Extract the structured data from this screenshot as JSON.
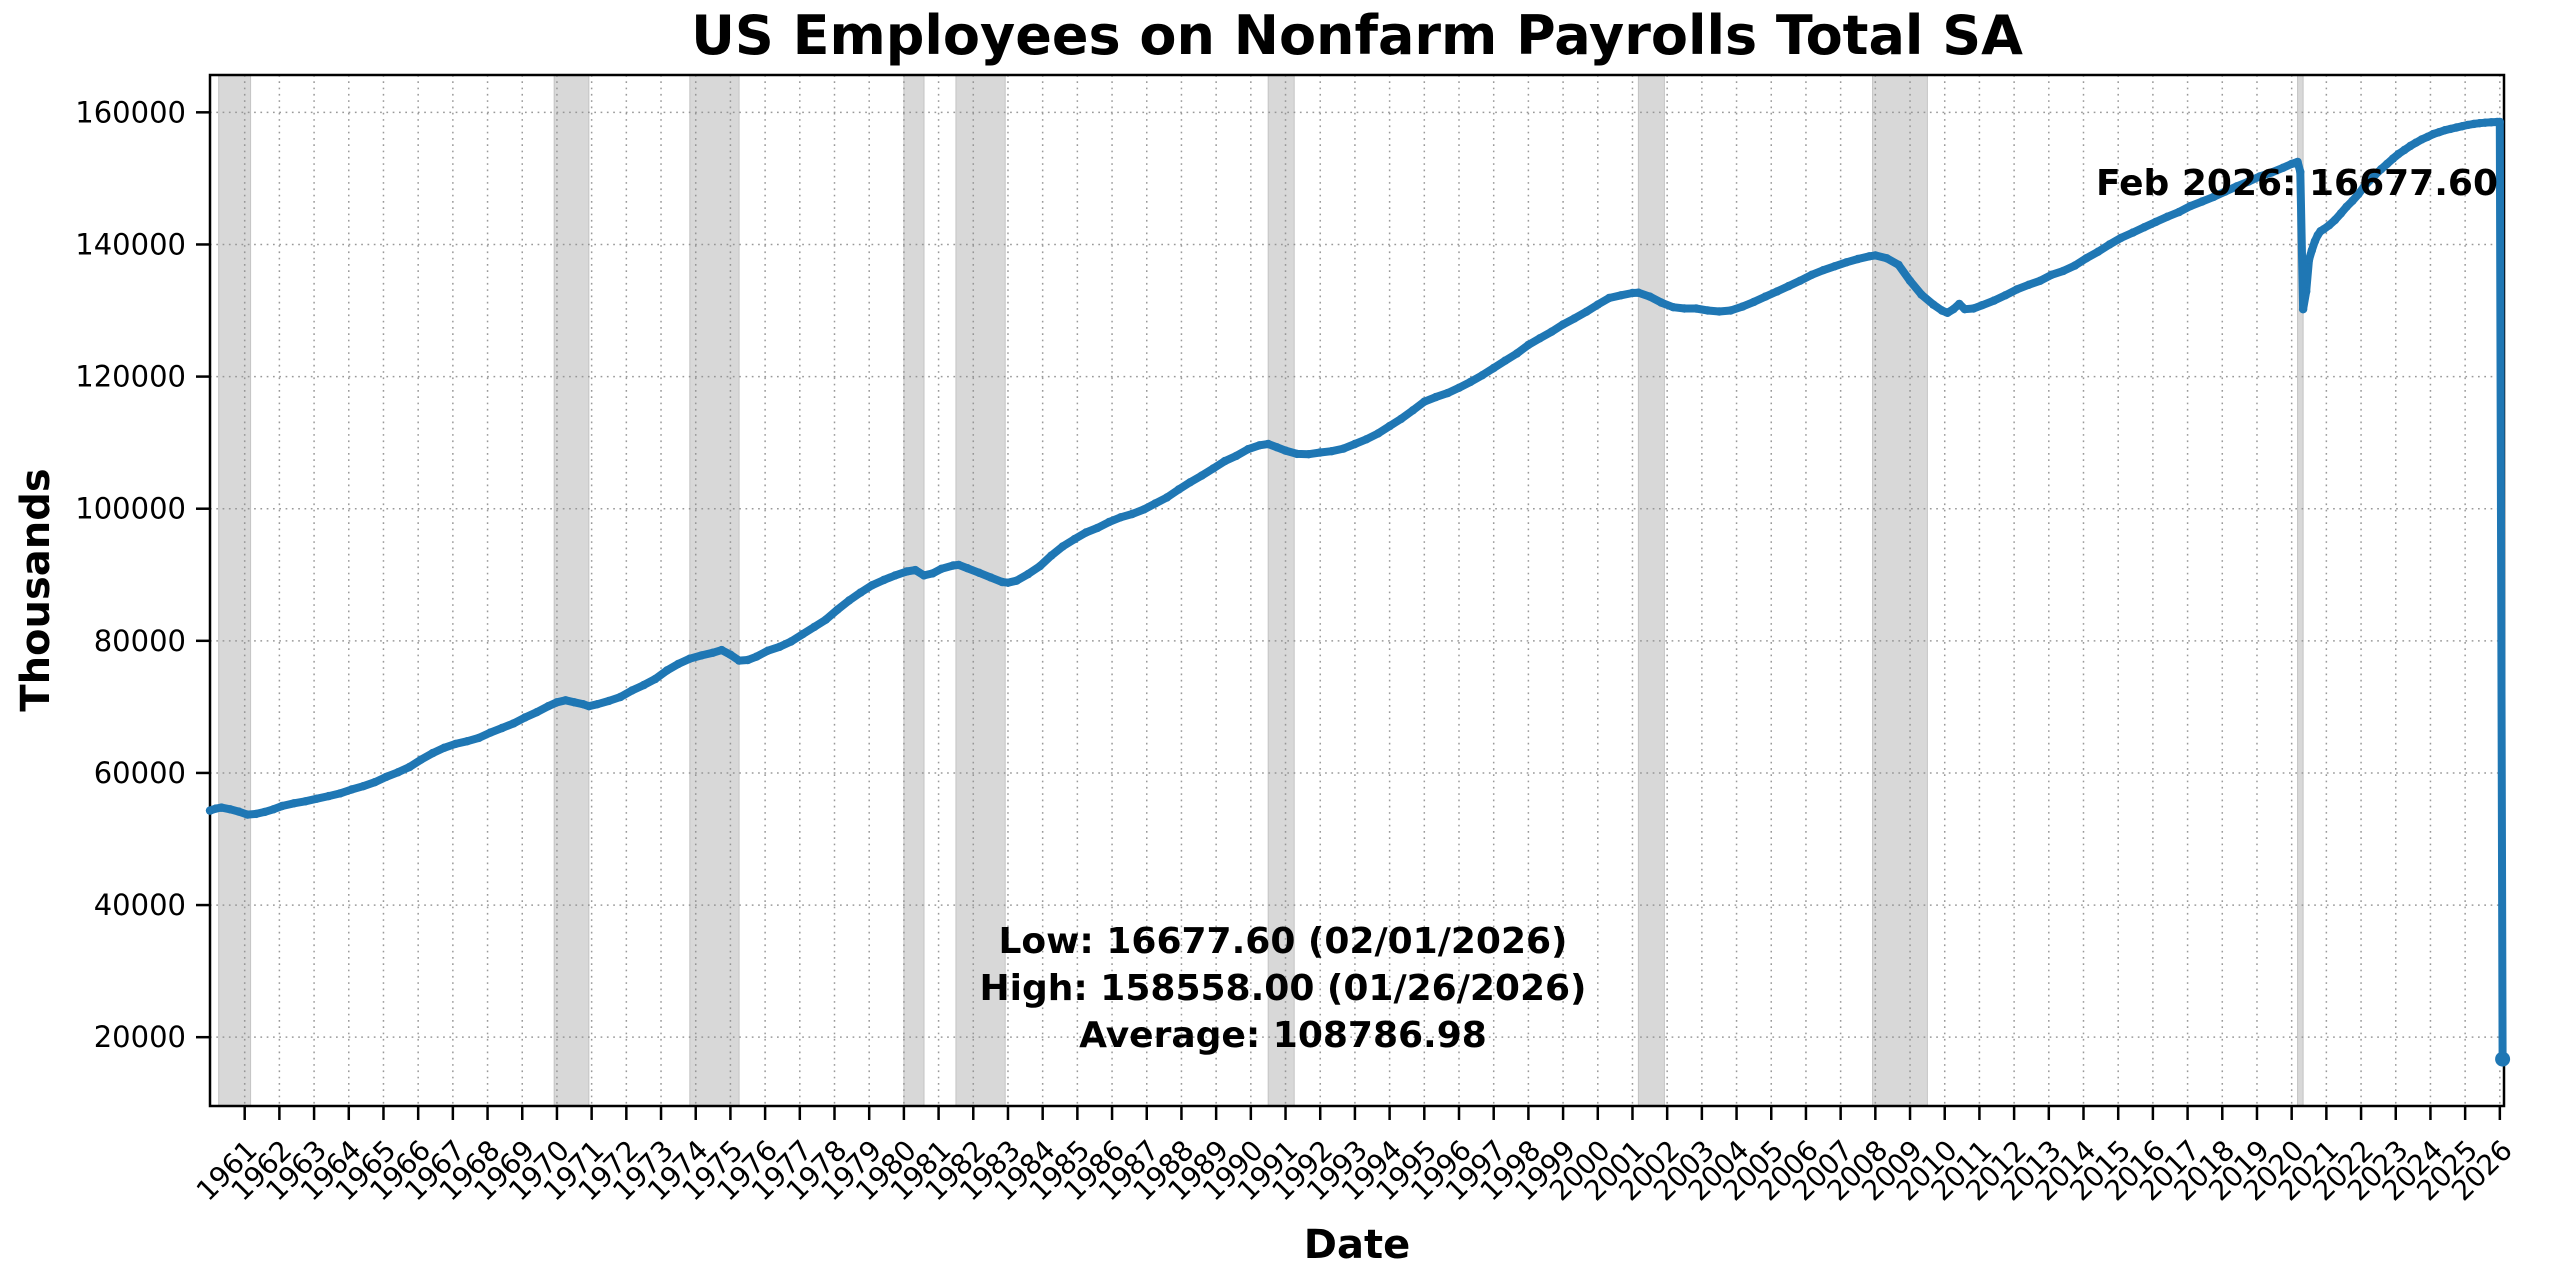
{
  "figure": {
    "title": "US Employees on Nonfarm Payrolls Total SA",
    "xlabel": "Date",
    "ylabel": "Thousands",
    "annotation_label": "Feb 2026: 16677.60",
    "stats_lines": {
      "low": "Low: 16677.60 (02/01/2026)",
      "high": "High: 158558.00 (01/26/2026)",
      "average": "Average: 108786.98"
    }
  },
  "colors": {
    "line": "#1f77b4",
    "recession_band": "#d8d8d8",
    "recession_band_edge": "#c4c4c4",
    "grid": "#8f8f8f",
    "spine": "#000000",
    "text": "#000000",
    "background": "#ffffff"
  },
  "chart_data": {
    "type": "line",
    "title": "US Employees on Nonfarm Payrolls Total SA",
    "xlabel": "Date",
    "ylabel": "Thousands",
    "x_unit": "decimal_year",
    "xlim": [
      1960.0,
      2026.12
    ],
    "ylim": [
      9583,
      165652
    ],
    "grid": true,
    "legend": false,
    "xticks": [
      1961,
      1962,
      1963,
      1964,
      1965,
      1966,
      1967,
      1968,
      1969,
      1970,
      1971,
      1972,
      1973,
      1974,
      1975,
      1976,
      1977,
      1978,
      1979,
      1980,
      1981,
      1982,
      1983,
      1984,
      1985,
      1986,
      1987,
      1988,
      1989,
      1990,
      1991,
      1992,
      1993,
      1994,
      1995,
      1996,
      1997,
      1998,
      1999,
      2000,
      2001,
      2002,
      2003,
      2004,
      2005,
      2006,
      2007,
      2008,
      2009,
      2010,
      2011,
      2012,
      2013,
      2014,
      2015,
      2016,
      2017,
      2018,
      2019,
      2020,
      2021,
      2022,
      2023,
      2024,
      2025,
      2026
    ],
    "yticks": [
      20000,
      40000,
      60000,
      80000,
      100000,
      120000,
      140000,
      160000
    ],
    "recession_bands": [
      [
        1960.25,
        1961.17
      ],
      [
        1969.92,
        1970.92
      ],
      [
        1973.83,
        1975.25
      ],
      [
        1980.0,
        1980.58
      ],
      [
        1981.5,
        1982.92
      ],
      [
        1990.5,
        1991.25
      ],
      [
        2001.17,
        2001.92
      ],
      [
        2007.92,
        2009.5
      ],
      [
        2020.17,
        2020.33
      ]
    ],
    "annotation": {
      "text": "Feb 2026: 16677.60",
      "x": 2026.08,
      "y": 158558
    },
    "stats": {
      "low": 16677.6,
      "low_date": "02/01/2026",
      "high": 158558.0,
      "high_date": "01/26/2026",
      "average": 108786.98
    },
    "series": [
      {
        "name": "US Employees on Nonfarm Payrolls Total SA (thousands)",
        "points": [
          [
            1960.0,
            54300
          ],
          [
            1960.17,
            54600
          ],
          [
            1960.33,
            54750
          ],
          [
            1960.58,
            54500
          ],
          [
            1960.83,
            54150
          ],
          [
            1961.08,
            53700
          ],
          [
            1961.33,
            53800
          ],
          [
            1961.58,
            54100
          ],
          [
            1961.83,
            54500
          ],
          [
            1962.08,
            55000
          ],
          [
            1962.42,
            55400
          ],
          [
            1962.75,
            55700
          ],
          [
            1963.08,
            56100
          ],
          [
            1963.42,
            56500
          ],
          [
            1963.75,
            56900
          ],
          [
            1964.08,
            57500
          ],
          [
            1964.42,
            58000
          ],
          [
            1964.75,
            58600
          ],
          [
            1965.08,
            59400
          ],
          [
            1965.42,
            60100
          ],
          [
            1965.75,
            60900
          ],
          [
            1966.08,
            62000
          ],
          [
            1966.42,
            63000
          ],
          [
            1966.75,
            63800
          ],
          [
            1967.08,
            64400
          ],
          [
            1967.42,
            64800
          ],
          [
            1967.75,
            65300
          ],
          [
            1968.08,
            66100
          ],
          [
            1968.42,
            66800
          ],
          [
            1968.75,
            67500
          ],
          [
            1969.08,
            68400
          ],
          [
            1969.42,
            69200
          ],
          [
            1969.75,
            70100
          ],
          [
            1970.0,
            70700
          ],
          [
            1970.25,
            71000
          ],
          [
            1970.5,
            70700
          ],
          [
            1970.75,
            70400
          ],
          [
            1970.92,
            70100
          ],
          [
            1971.17,
            70400
          ],
          [
            1971.5,
            70900
          ],
          [
            1971.83,
            71500
          ],
          [
            1972.17,
            72500
          ],
          [
            1972.5,
            73300
          ],
          [
            1972.83,
            74200
          ],
          [
            1973.17,
            75500
          ],
          [
            1973.5,
            76500
          ],
          [
            1973.83,
            77300
          ],
          [
            1974.17,
            77800
          ],
          [
            1974.5,
            78200
          ],
          [
            1974.75,
            78600
          ],
          [
            1975.0,
            77900
          ],
          [
            1975.25,
            77000
          ],
          [
            1975.5,
            77100
          ],
          [
            1975.75,
            77600
          ],
          [
            1976.08,
            78500
          ],
          [
            1976.42,
            79100
          ],
          [
            1976.75,
            79900
          ],
          [
            1977.08,
            81000
          ],
          [
            1977.42,
            82100
          ],
          [
            1977.75,
            83200
          ],
          [
            1978.08,
            84700
          ],
          [
            1978.42,
            86100
          ],
          [
            1978.75,
            87300
          ],
          [
            1979.08,
            88400
          ],
          [
            1979.42,
            89200
          ],
          [
            1979.75,
            89900
          ],
          [
            1980.08,
            90500
          ],
          [
            1980.33,
            90700
          ],
          [
            1980.58,
            89900
          ],
          [
            1980.83,
            90200
          ],
          [
            1981.08,
            90900
          ],
          [
            1981.42,
            91400
          ],
          [
            1981.58,
            91500
          ],
          [
            1981.83,
            91000
          ],
          [
            1982.17,
            90300
          ],
          [
            1982.5,
            89600
          ],
          [
            1982.83,
            88900
          ],
          [
            1983.0,
            88800
          ],
          [
            1983.25,
            89100
          ],
          [
            1983.58,
            90100
          ],
          [
            1983.92,
            91300
          ],
          [
            1984.25,
            92900
          ],
          [
            1984.58,
            94300
          ],
          [
            1984.92,
            95400
          ],
          [
            1985.25,
            96400
          ],
          [
            1985.58,
            97100
          ],
          [
            1985.92,
            98000
          ],
          [
            1986.25,
            98700
          ],
          [
            1986.58,
            99200
          ],
          [
            1986.92,
            99900
          ],
          [
            1987.25,
            100800
          ],
          [
            1987.58,
            101700
          ],
          [
            1987.92,
            102900
          ],
          [
            1988.25,
            104000
          ],
          [
            1988.58,
            105000
          ],
          [
            1988.92,
            106100
          ],
          [
            1989.25,
            107200
          ],
          [
            1989.58,
            108000
          ],
          [
            1989.92,
            109000
          ],
          [
            1990.25,
            109600
          ],
          [
            1990.5,
            109800
          ],
          [
            1990.75,
            109300
          ],
          [
            1991.0,
            108800
          ],
          [
            1991.33,
            108300
          ],
          [
            1991.67,
            108250
          ],
          [
            1992.0,
            108500
          ],
          [
            1992.33,
            108700
          ],
          [
            1992.67,
            109100
          ],
          [
            1993.0,
            109800
          ],
          [
            1993.33,
            110500
          ],
          [
            1993.67,
            111400
          ],
          [
            1994.0,
            112500
          ],
          [
            1994.33,
            113600
          ],
          [
            1994.67,
            114900
          ],
          [
            1995.0,
            116200
          ],
          [
            1995.33,
            116900
          ],
          [
            1995.67,
            117500
          ],
          [
            1996.0,
            118300
          ],
          [
            1996.33,
            119200
          ],
          [
            1996.67,
            120200
          ],
          [
            1997.0,
            121300
          ],
          [
            1997.33,
            122400
          ],
          [
            1997.67,
            123500
          ],
          [
            1998.0,
            124800
          ],
          [
            1998.33,
            125800
          ],
          [
            1998.67,
            126800
          ],
          [
            1999.0,
            127900
          ],
          [
            1999.33,
            128800
          ],
          [
            1999.67,
            129800
          ],
          [
            2000.0,
            130900
          ],
          [
            2000.33,
            131900
          ],
          [
            2000.67,
            132300
          ],
          [
            2001.0,
            132650
          ],
          [
            2001.17,
            132700
          ],
          [
            2001.5,
            132100
          ],
          [
            2001.83,
            131200
          ],
          [
            2002.17,
            130500
          ],
          [
            2002.5,
            130300
          ],
          [
            2002.83,
            130300
          ],
          [
            2003.17,
            130000
          ],
          [
            2003.5,
            129850
          ],
          [
            2003.83,
            130000
          ],
          [
            2004.17,
            130600
          ],
          [
            2004.5,
            131300
          ],
          [
            2004.83,
            132100
          ],
          [
            2005.17,
            132900
          ],
          [
            2005.5,
            133700
          ],
          [
            2005.83,
            134500
          ],
          [
            2006.17,
            135400
          ],
          [
            2006.5,
            136100
          ],
          [
            2006.83,
            136700
          ],
          [
            2007.17,
            137300
          ],
          [
            2007.5,
            137800
          ],
          [
            2007.83,
            138200
          ],
          [
            2008.0,
            138350
          ],
          [
            2008.33,
            137900
          ],
          [
            2008.67,
            136900
          ],
          [
            2009.0,
            134500
          ],
          [
            2009.33,
            132400
          ],
          [
            2009.67,
            130900
          ],
          [
            2009.92,
            130000
          ],
          [
            2010.08,
            129650
          ],
          [
            2010.25,
            130200
          ],
          [
            2010.42,
            131000
          ],
          [
            2010.58,
            130200
          ],
          [
            2010.83,
            130300
          ],
          [
            2011.08,
            130800
          ],
          [
            2011.42,
            131500
          ],
          [
            2011.75,
            132300
          ],
          [
            2012.08,
            133200
          ],
          [
            2012.42,
            133900
          ],
          [
            2012.75,
            134500
          ],
          [
            2013.08,
            135400
          ],
          [
            2013.42,
            136000
          ],
          [
            2013.75,
            136800
          ],
          [
            2014.08,
            137900
          ],
          [
            2014.42,
            138900
          ],
          [
            2014.75,
            140000
          ],
          [
            2015.08,
            141000
          ],
          [
            2015.42,
            141800
          ],
          [
            2015.75,
            142600
          ],
          [
            2016.08,
            143400
          ],
          [
            2016.42,
            144200
          ],
          [
            2016.75,
            144900
          ],
          [
            2017.08,
            145800
          ],
          [
            2017.42,
            146500
          ],
          [
            2017.75,
            147200
          ],
          [
            2018.08,
            148000
          ],
          [
            2018.42,
            148800
          ],
          [
            2018.75,
            149500
          ],
          [
            2019.08,
            150300
          ],
          [
            2019.42,
            150900
          ],
          [
            2019.75,
            151600
          ],
          [
            2020.0,
            152200
          ],
          [
            2020.17,
            152500
          ],
          [
            2020.25,
            151000
          ],
          [
            2020.33,
            130200
          ],
          [
            2020.42,
            132900
          ],
          [
            2020.5,
            137700
          ],
          [
            2020.58,
            139100
          ],
          [
            2020.67,
            140500
          ],
          [
            2020.75,
            141400
          ],
          [
            2020.83,
            142000
          ],
          [
            2020.92,
            142300
          ],
          [
            2021.08,
            142900
          ],
          [
            2021.25,
            143700
          ],
          [
            2021.42,
            144700
          ],
          [
            2021.58,
            145700
          ],
          [
            2021.75,
            146600
          ],
          [
            2021.92,
            147600
          ],
          [
            2022.08,
            148700
          ],
          [
            2022.25,
            149700
          ],
          [
            2022.42,
            150600
          ],
          [
            2022.58,
            151400
          ],
          [
            2022.75,
            152200
          ],
          [
            2022.92,
            153000
          ],
          [
            2023.08,
            153700
          ],
          [
            2023.25,
            154300
          ],
          [
            2023.42,
            154900
          ],
          [
            2023.58,
            155400
          ],
          [
            2023.75,
            155900
          ],
          [
            2023.92,
            156300
          ],
          [
            2024.08,
            156700
          ],
          [
            2024.25,
            157000
          ],
          [
            2024.42,
            157300
          ],
          [
            2024.58,
            157500
          ],
          [
            2024.75,
            157700
          ],
          [
            2024.92,
            157900
          ],
          [
            2025.08,
            158100
          ],
          [
            2025.25,
            158250
          ],
          [
            2025.42,
            158350
          ],
          [
            2025.58,
            158430
          ],
          [
            2025.75,
            158490
          ],
          [
            2025.92,
            158530
          ],
          [
            2026.0,
            158558
          ],
          [
            2026.08,
            16677.6
          ]
        ]
      }
    ]
  }
}
